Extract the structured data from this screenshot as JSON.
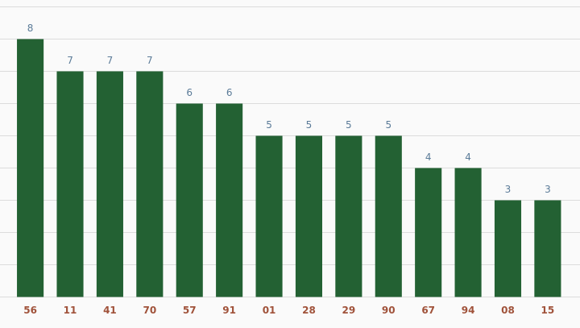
{
  "chart_data": {
    "type": "bar",
    "categories": [
      "56",
      "11",
      "41",
      "70",
      "57",
      "91",
      "01",
      "28",
      "29",
      "90",
      "67",
      "94",
      "08",
      "15"
    ],
    "values": [
      8,
      7,
      7,
      7,
      6,
      6,
      5,
      5,
      5,
      5,
      4,
      4,
      3,
      3
    ],
    "color": "#236133",
    "ylim": [
      0,
      9
    ],
    "yticks": [
      0,
      1,
      2,
      3,
      4,
      5,
      6,
      7,
      8,
      9
    ],
    "grid": true
  }
}
